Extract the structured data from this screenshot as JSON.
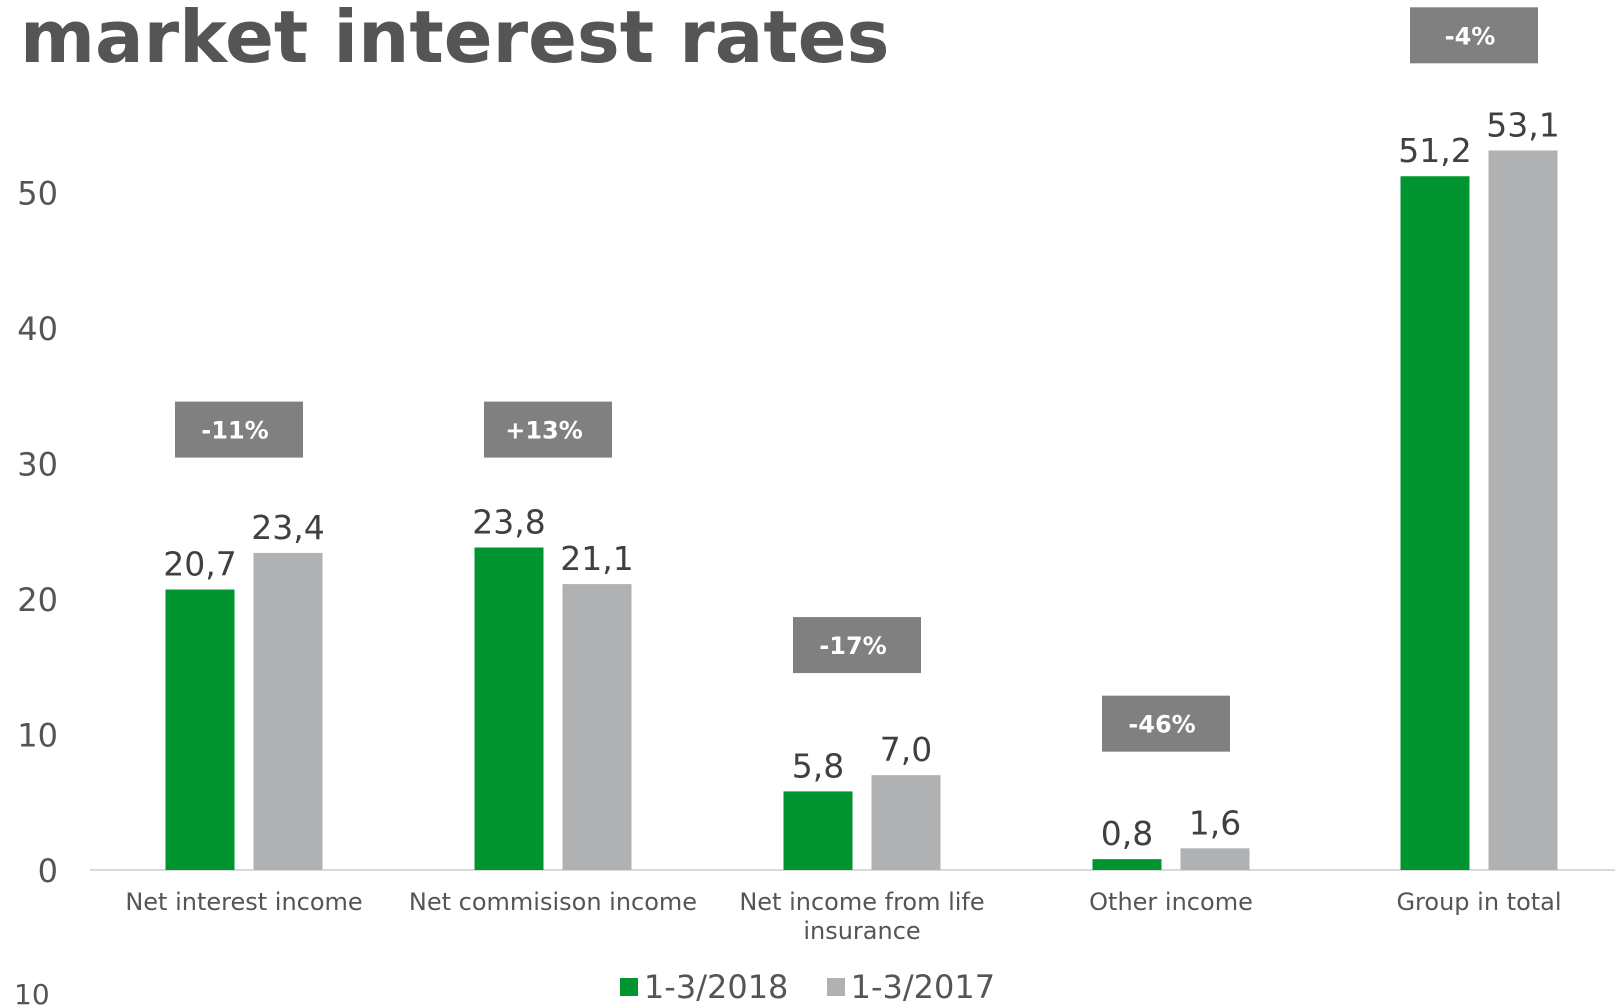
{
  "title": "market interest rates",
  "corner_text": "10",
  "colors": {
    "series_2018": "#009530",
    "series_2017": "#b0b1b3",
    "change_box": "#808080",
    "axis_text": "#555555",
    "label_text": "#404040",
    "baseline": "#d9d9d9"
  },
  "chart_data": {
    "type": "bar",
    "categories": [
      [
        "Net interest income"
      ],
      [
        "Net commisison income"
      ],
      [
        "Net income from life",
        "insurance"
      ],
      [
        "Other income"
      ],
      [
        "Group in total"
      ]
    ],
    "series": [
      {
        "name": "1-3/2018",
        "values": [
          20.7,
          23.8,
          5.8,
          0.8,
          51.2
        ],
        "labels": [
          "20,7",
          "23,8",
          "5,8",
          "0,8",
          "51,2"
        ]
      },
      {
        "name": "1-3/2017",
        "values": [
          23.4,
          21.1,
          7.0,
          1.6,
          53.1
        ],
        "labels": [
          "23,4",
          "21,1",
          "7,0",
          "1,6",
          "53,1"
        ]
      }
    ],
    "changes": [
      {
        "label": "-11%",
        "level": 32.5
      },
      {
        "label": "+13%",
        "level": 32.5
      },
      {
        "label": "-17%",
        "level": 16.6
      },
      {
        "label": "-46%",
        "level": 10.8
      },
      {
        "label": "-4%",
        "level": 61.6
      }
    ],
    "y_ticks": [
      0,
      10,
      20,
      30,
      40,
      50
    ],
    "ylim": [
      0,
      64
    ],
    "legend_position": "bottom",
    "grid": false
  }
}
